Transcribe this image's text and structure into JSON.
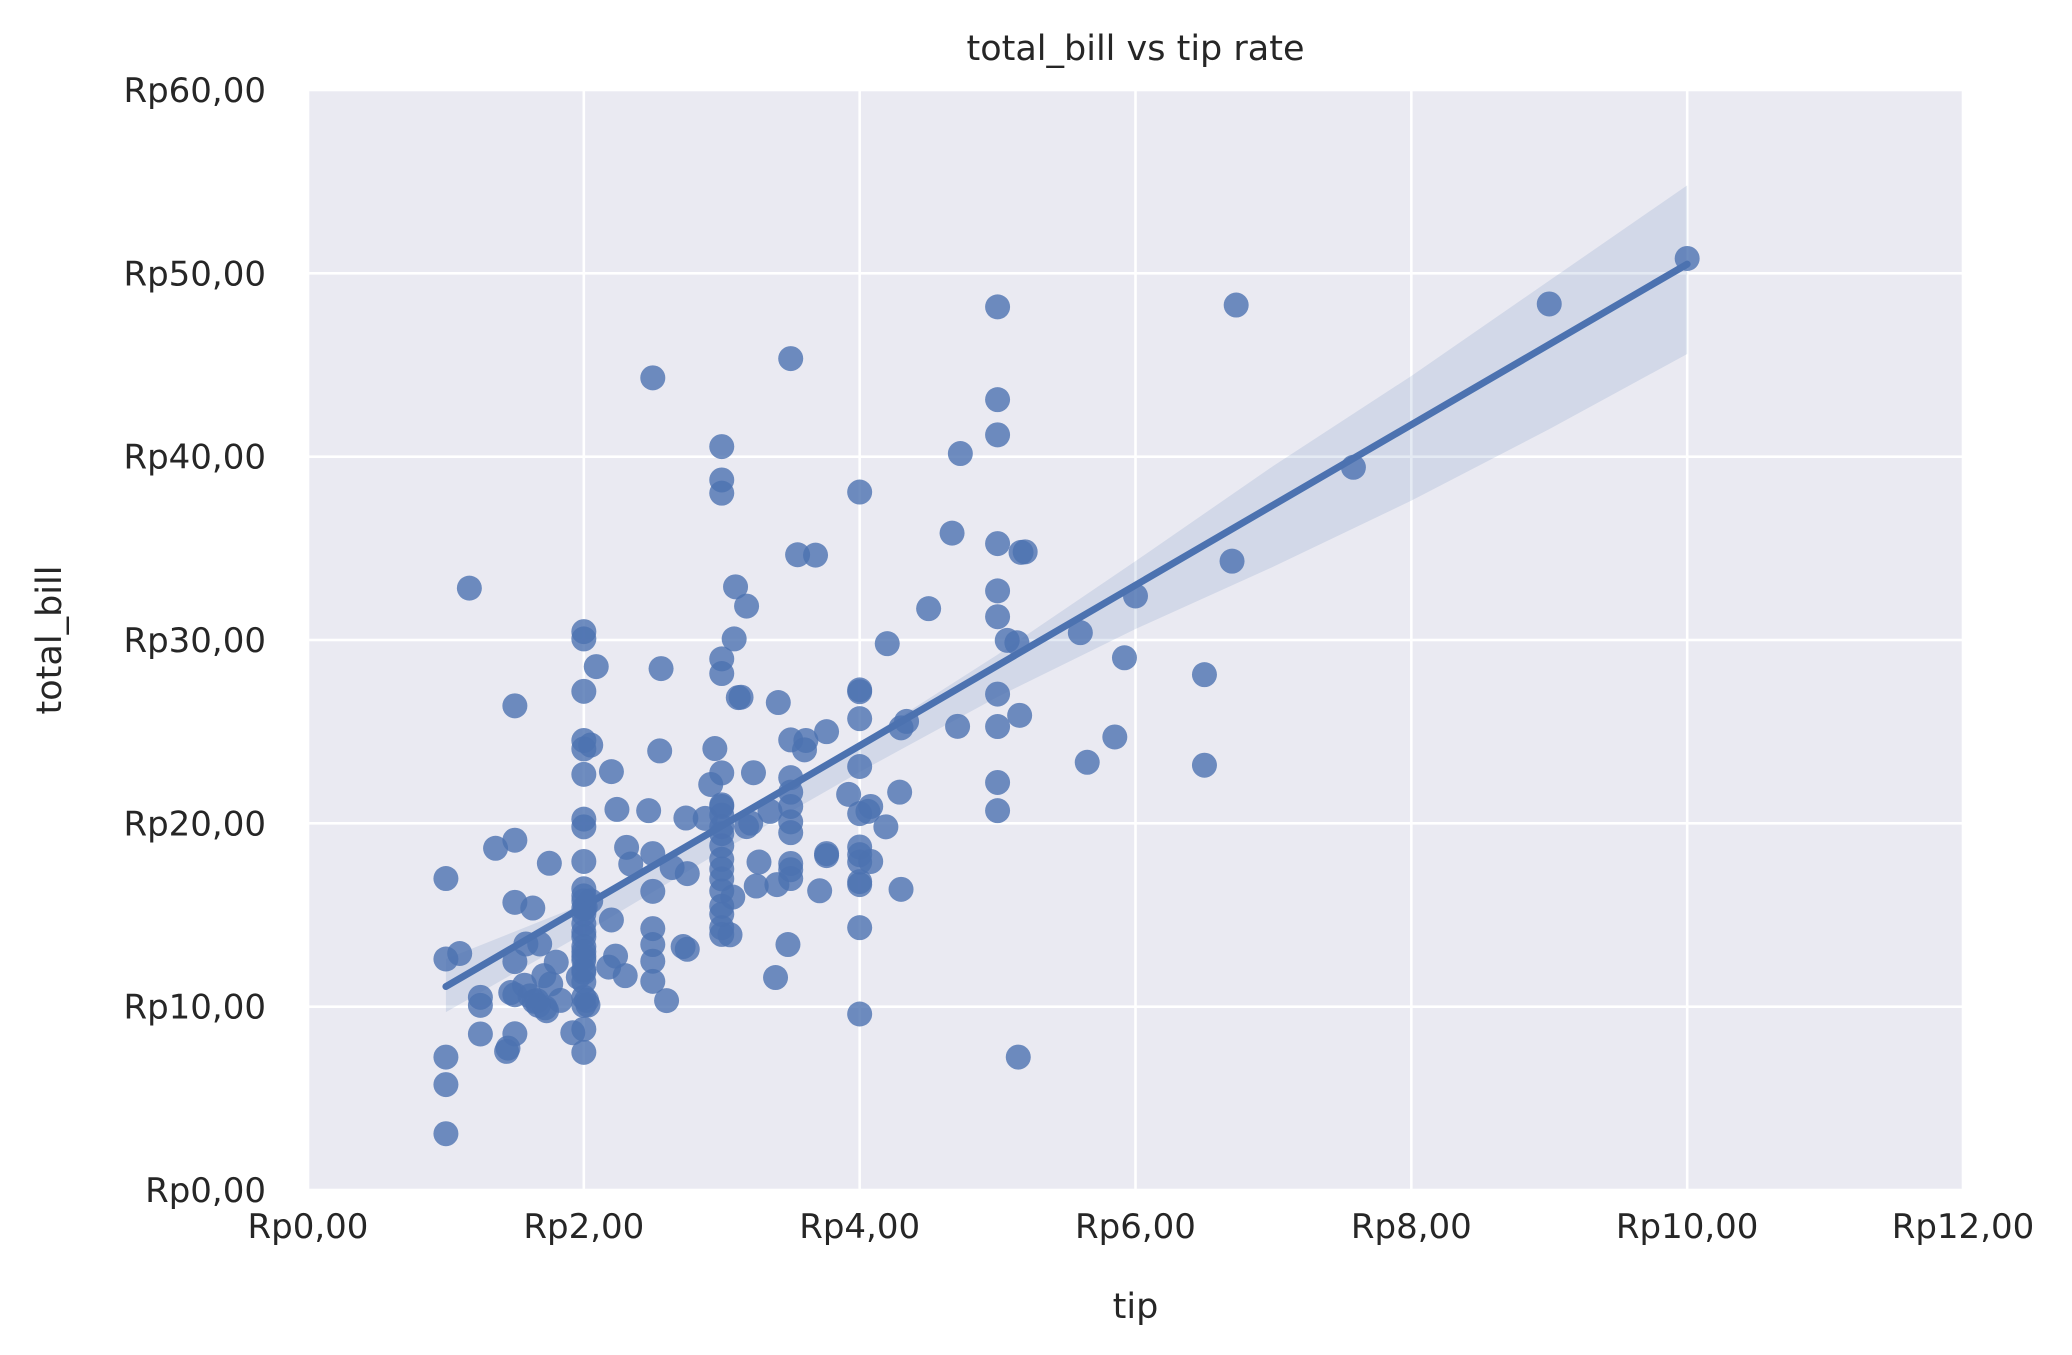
{
  "chart_data": {
    "type": "scatter",
    "title": "total_bill vs tip rate",
    "xlabel": "tip",
    "ylabel": "total_bill",
    "xlim": [
      0,
      12
    ],
    "ylim": [
      0,
      60
    ],
    "x_ticks": [
      0,
      2,
      4,
      6,
      8,
      10,
      12
    ],
    "y_ticks": [
      0,
      10,
      20,
      30,
      40,
      50,
      60
    ],
    "x_tick_labels": [
      "Rp0,00",
      "Rp2,00",
      "Rp4,00",
      "Rp6,00",
      "Rp8,00",
      "Rp10,00",
      "Rp12,00"
    ],
    "y_tick_labels": [
      "Rp0,00",
      "Rp10,00",
      "Rp20,00",
      "Rp30,00",
      "Rp40,00",
      "Rp50,00",
      "Rp60,00"
    ],
    "grid": true,
    "colors": {
      "background": "#eaeaf2",
      "grid": "#ffffff",
      "points": "#4c72b0",
      "fit_line": "#4c72b0",
      "confidence_band": "#4c72b0",
      "text": "#262626"
    },
    "regression": {
      "x_range": [
        1.0,
        10.0
      ],
      "line": [
        [
          1.0,
          11.1
        ],
        [
          10.0,
          50.5
        ]
      ],
      "ci_upper": [
        [
          1.0,
          12.6
        ],
        [
          2.0,
          15.6
        ],
        [
          3.0,
          19.8
        ],
        [
          4.0,
          24.4
        ],
        [
          5.0,
          29.2
        ],
        [
          6.0,
          34.3
        ],
        [
          7.0,
          39.5
        ],
        [
          8.0,
          44.4
        ],
        [
          9.0,
          49.6
        ],
        [
          10.0,
          54.8
        ]
      ],
      "ci_lower": [
        [
          1.0,
          9.7
        ],
        [
          2.0,
          14.0
        ],
        [
          3.0,
          18.5
        ],
        [
          4.0,
          22.8
        ],
        [
          5.0,
          26.9
        ],
        [
          6.0,
          30.6
        ],
        [
          7.0,
          34.0
        ],
        [
          8.0,
          37.6
        ],
        [
          9.0,
          41.5
        ],
        [
          10.0,
          45.6
        ]
      ]
    },
    "points": [
      [
        1.0,
        3.07
      ],
      [
        1.0,
        5.75
      ],
      [
        1.0,
        7.25
      ],
      [
        1.0,
        12.6
      ],
      [
        1.0,
        16.99
      ],
      [
        1.1,
        12.9
      ],
      [
        1.17,
        32.83
      ],
      [
        1.25,
        8.51
      ],
      [
        1.25,
        10.07
      ],
      [
        1.25,
        10.51
      ],
      [
        1.36,
        18.64
      ],
      [
        1.44,
        7.56
      ],
      [
        1.45,
        7.74
      ],
      [
        1.47,
        10.77
      ],
      [
        1.5,
        8.52
      ],
      [
        1.5,
        10.65
      ],
      [
        1.5,
        12.46
      ],
      [
        1.5,
        15.69
      ],
      [
        1.5,
        19.08
      ],
      [
        1.5,
        26.41
      ],
      [
        1.57,
        11.17
      ],
      [
        1.58,
        13.42
      ],
      [
        1.61,
        10.59
      ],
      [
        1.63,
        15.38
      ],
      [
        1.64,
        10.29
      ],
      [
        1.66,
        10.33
      ],
      [
        1.67,
        10.07
      ],
      [
        1.68,
        13.42
      ],
      [
        1.71,
        11.69
      ],
      [
        1.72,
        9.94
      ],
      [
        1.73,
        9.78
      ],
      [
        1.75,
        17.82
      ],
      [
        1.76,
        11.24
      ],
      [
        1.8,
        12.43
      ],
      [
        1.83,
        10.34
      ],
      [
        1.92,
        8.58
      ],
      [
        1.96,
        11.61
      ],
      [
        2.0,
        7.51
      ],
      [
        2.0,
        8.77
      ],
      [
        2.0,
        10.07
      ],
      [
        2.0,
        10.51
      ],
      [
        2.0,
        11.35
      ],
      [
        2.0,
        11.87
      ],
      [
        2.0,
        12.02
      ],
      [
        2.0,
        12.54
      ],
      [
        2.0,
        12.74
      ],
      [
        2.0,
        13.0
      ],
      [
        2.0,
        13.28
      ],
      [
        2.0,
        13.81
      ],
      [
        2.0,
        14.07
      ],
      [
        2.0,
        14.52
      ],
      [
        2.0,
        15.06
      ],
      [
        2.0,
        15.36
      ],
      [
        2.0,
        15.77
      ],
      [
        2.0,
        16.04
      ],
      [
        2.0,
        16.43
      ],
      [
        2.0,
        17.92
      ],
      [
        2.0,
        19.81
      ],
      [
        2.0,
        20.23
      ],
      [
        2.0,
        22.67
      ],
      [
        2.0,
        24.06
      ],
      [
        2.0,
        24.52
      ],
      [
        2.0,
        27.2
      ],
      [
        2.0,
        30.06
      ],
      [
        2.0,
        30.46
      ],
      [
        2.01,
        15.42
      ],
      [
        2.02,
        10.34
      ],
      [
        2.03,
        10.09
      ],
      [
        2.05,
        15.77
      ],
      [
        2.05,
        24.27
      ],
      [
        2.09,
        28.55
      ],
      [
        2.18,
        12.16
      ],
      [
        2.2,
        14.73
      ],
      [
        2.2,
        22.82
      ],
      [
        2.23,
        12.76
      ],
      [
        2.24,
        20.76
      ],
      [
        2.3,
        11.69
      ],
      [
        2.31,
        18.69
      ],
      [
        2.34,
        17.78
      ],
      [
        2.47,
        20.69
      ],
      [
        2.5,
        11.38
      ],
      [
        2.5,
        12.48
      ],
      [
        2.5,
        13.39
      ],
      [
        2.5,
        14.26
      ],
      [
        2.5,
        16.29
      ],
      [
        2.5,
        18.35
      ],
      [
        2.5,
        44.3
      ],
      [
        2.55,
        23.95
      ],
      [
        2.56,
        28.44
      ],
      [
        2.6,
        10.33
      ],
      [
        2.64,
        17.59
      ],
      [
        2.72,
        13.28
      ],
      [
        2.74,
        20.29
      ],
      [
        2.75,
        13.13
      ],
      [
        2.75,
        17.26
      ],
      [
        2.88,
        20.27
      ],
      [
        2.92,
        22.12
      ],
      [
        2.95,
        24.08
      ],
      [
        3.0,
        13.94
      ],
      [
        3.0,
        14.31
      ],
      [
        3.0,
        15.04
      ],
      [
        3.0,
        15.48
      ],
      [
        3.0,
        16.31
      ],
      [
        3.0,
        16.97
      ],
      [
        3.0,
        17.51
      ],
      [
        3.0,
        18.04
      ],
      [
        3.0,
        18.78
      ],
      [
        3.0,
        19.44
      ],
      [
        3.0,
        19.82
      ],
      [
        3.0,
        20.45
      ],
      [
        3.0,
        20.92
      ],
      [
        3.0,
        21.01
      ],
      [
        3.0,
        22.75
      ],
      [
        3.0,
        28.17
      ],
      [
        3.0,
        28.97
      ],
      [
        3.0,
        38.01
      ],
      [
        3.0,
        38.73
      ],
      [
        3.0,
        40.55
      ],
      [
        3.06,
        13.92
      ],
      [
        3.08,
        15.98
      ],
      [
        3.09,
        30.06
      ],
      [
        3.1,
        32.9
      ],
      [
        3.12,
        26.86
      ],
      [
        3.14,
        26.88
      ],
      [
        3.18,
        19.82
      ],
      [
        3.18,
        31.85
      ],
      [
        3.21,
        20.01
      ],
      [
        3.23,
        22.76
      ],
      [
        3.25,
        16.58
      ],
      [
        3.27,
        17.89
      ],
      [
        3.35,
        20.65
      ],
      [
        3.39,
        11.59
      ],
      [
        3.4,
        16.66
      ],
      [
        3.41,
        26.59
      ],
      [
        3.48,
        13.39
      ],
      [
        3.5,
        16.99
      ],
      [
        3.5,
        17.47
      ],
      [
        3.5,
        17.81
      ],
      [
        3.5,
        19.49
      ],
      [
        3.5,
        20.08
      ],
      [
        3.5,
        20.92
      ],
      [
        3.5,
        21.7
      ],
      [
        3.5,
        22.49
      ],
      [
        3.5,
        24.55
      ],
      [
        3.5,
        45.35
      ],
      [
        3.55,
        34.65
      ],
      [
        3.6,
        24.01
      ],
      [
        3.61,
        24.52
      ],
      [
        3.68,
        34.63
      ],
      [
        3.71,
        16.32
      ],
      [
        3.76,
        18.24
      ],
      [
        3.76,
        18.35
      ],
      [
        3.76,
        25.0
      ],
      [
        3.92,
        21.58
      ],
      [
        4.0,
        9.6
      ],
      [
        4.0,
        14.31
      ],
      [
        4.0,
        16.66
      ],
      [
        4.0,
        16.82
      ],
      [
        4.0,
        17.89
      ],
      [
        4.0,
        18.29
      ],
      [
        4.0,
        18.71
      ],
      [
        4.0,
        20.53
      ],
      [
        4.0,
        23.1
      ],
      [
        4.0,
        25.71
      ],
      [
        4.0,
        27.18
      ],
      [
        4.0,
        27.28
      ],
      [
        4.0,
        38.07
      ],
      [
        4.06,
        20.65
      ],
      [
        4.08,
        17.92
      ],
      [
        4.08,
        20.92
      ],
      [
        4.19,
        19.81
      ],
      [
        4.2,
        29.8
      ],
      [
        4.29,
        21.7
      ],
      [
        4.3,
        16.4
      ],
      [
        4.3,
        25.21
      ],
      [
        4.34,
        25.56
      ],
      [
        4.5,
        31.71
      ],
      [
        4.67,
        35.83
      ],
      [
        4.71,
        25.29
      ],
      [
        4.73,
        40.17
      ],
      [
        5.0,
        20.69
      ],
      [
        5.0,
        22.23
      ],
      [
        5.0,
        25.28
      ],
      [
        5.0,
        27.05
      ],
      [
        5.0,
        31.27
      ],
      [
        5.0,
        32.68
      ],
      [
        5.0,
        35.26
      ],
      [
        5.0,
        41.19
      ],
      [
        5.0,
        43.11
      ],
      [
        5.0,
        48.17
      ],
      [
        5.07,
        29.98
      ],
      [
        5.14,
        29.85
      ],
      [
        5.15,
        7.25
      ],
      [
        5.16,
        25.89
      ],
      [
        5.17,
        34.78
      ],
      [
        5.2,
        34.81
      ],
      [
        5.6,
        30.4
      ],
      [
        5.65,
        23.33
      ],
      [
        5.85,
        24.71
      ],
      [
        5.92,
        29.03
      ],
      [
        6.0,
        32.4
      ],
      [
        6.5,
        23.17
      ],
      [
        6.5,
        28.11
      ],
      [
        6.7,
        34.3
      ],
      [
        6.73,
        48.27
      ],
      [
        7.58,
        39.42
      ],
      [
        9.0,
        48.33
      ],
      [
        10.0,
        50.81
      ]
    ]
  }
}
